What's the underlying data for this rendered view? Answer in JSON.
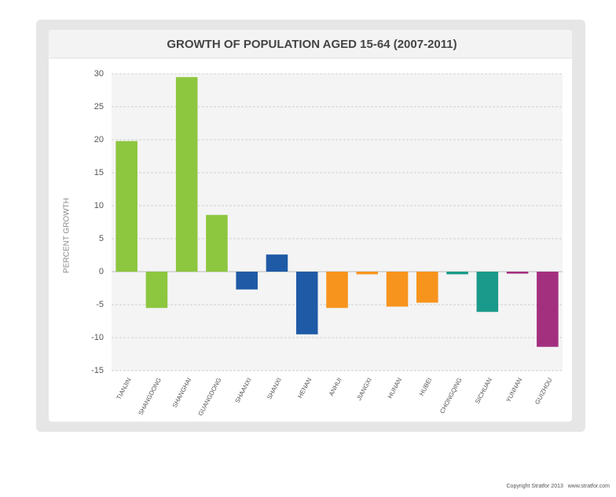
{
  "chart_data": {
    "type": "bar",
    "title": "GROWTH OF POPULATION AGED 15-64 (2007-2011)",
    "y_label": "PERCENT GROWTH",
    "categories": [
      "TIANJIN",
      "SHANGDONG",
      "SHANGHAI",
      "GUANGDONG",
      "SHAANXI",
      "SHANXI",
      "HENAN",
      "ANHUI",
      "JIANGXI",
      "HUNAN",
      "HUBEI",
      "CHONGQING",
      "SICHUAN",
      "YUNNAN",
      "GUIZHOU"
    ],
    "values": [
      19.8,
      -5.5,
      29.5,
      8.6,
      -2.7,
      2.6,
      -9.5,
      -5.5,
      -0.4,
      -5.3,
      -4.7,
      -0.4,
      -6.1,
      -0.3,
      -11.4
    ],
    "colors": [
      "#8dc63f",
      "#8dc63f",
      "#8dc63f",
      "#8dc63f",
      "#1f5aa6",
      "#1f5aa6",
      "#1f5aa6",
      "#f7941d",
      "#f7941d",
      "#f7941d",
      "#f7941d",
      "#1a9a8a",
      "#1a9a8a",
      "#a3307f",
      "#a3307f"
    ],
    "ylim": [
      -15,
      30
    ],
    "yticks": [
      -15,
      -10,
      -5,
      0,
      5,
      10,
      15,
      20,
      25,
      30
    ],
    "grid": true,
    "copyright": "Copyright Stratfor 2013   www.stratfor.com"
  }
}
